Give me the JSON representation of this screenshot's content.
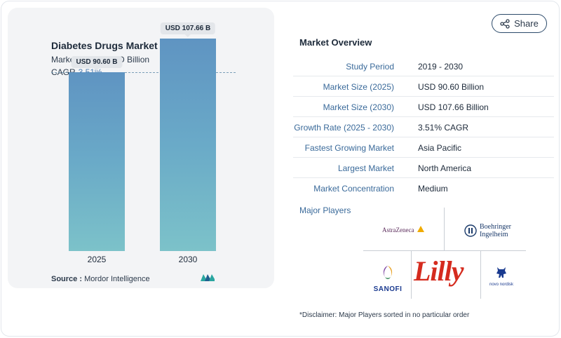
{
  "chart_data": {
    "type": "bar",
    "title": "Diabetes Drugs Market",
    "subtitle": "Market Size in USD Billion",
    "cagr_label": "CAGR",
    "cagr_value": "3.51%",
    "categories": [
      "2025",
      "2030"
    ],
    "values": [
      90.6,
      107.66
    ],
    "data_labels": [
      "USD 90.60 B",
      "USD 107.66 B"
    ],
    "ylim": [
      0,
      120
    ],
    "grid": false,
    "reference_line": "dashed line at 2025 value"
  },
  "source": {
    "label": "Source :",
    "text": "Mordor Intelligence"
  },
  "share": {
    "label": "Share"
  },
  "overview": {
    "title": "Market Overview",
    "rows": [
      {
        "label": "Study Period",
        "value": "2019 - 2030"
      },
      {
        "label": "Market Size (2025)",
        "value": "USD 90.60 Billion"
      },
      {
        "label": "Market Size (2030)",
        "value": "USD 107.66 Billion"
      },
      {
        "label": "Growth Rate (2025 - 2030)",
        "value": "3.51% CAGR"
      },
      {
        "label": "Fastest Growing Market",
        "value": "Asia Pacific"
      },
      {
        "label": "Largest Market",
        "value": "North America"
      },
      {
        "label": "Market Concentration",
        "value": "Medium"
      }
    ]
  },
  "players": {
    "title": "Major Players",
    "logos": {
      "astrazeneca": "AstraZeneca",
      "boehringer_1": "Boehringer",
      "boehringer_2": "Ingelheim",
      "sanofi": "SANOFI",
      "lilly": "Lilly",
      "novo": "novo nordisk"
    }
  },
  "disclaimer": "*Disclaimer: Major Players sorted in no particular order",
  "colors": {
    "bar_top": "#5f94c2",
    "bar_bottom": "#7cc2c9",
    "accent": "#3a6a9a",
    "lilly_red": "#d52b1e",
    "novo_blue": "#1a3a8f"
  }
}
